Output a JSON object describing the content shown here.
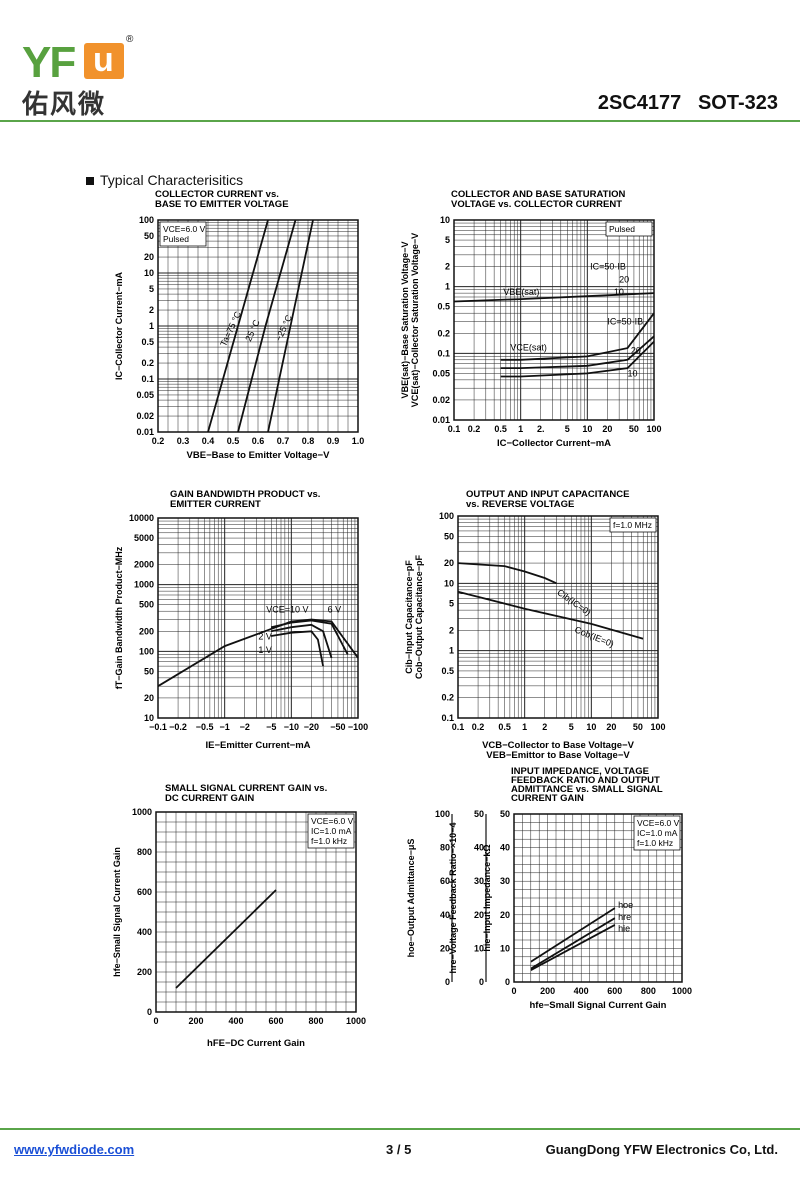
{
  "header": {
    "logo_latin": "YFW",
    "logo_cn": "佑风微",
    "registered": "®",
    "part_number": "2SC4177   SOT-323"
  },
  "section_title": "Typical Characterisitics",
  "footer": {
    "website": "www.yfwdiode.com",
    "page": "3 / 5",
    "company": "GuangDong YFW Electronics Co, Ltd."
  },
  "chart_data": [
    {
      "id": "c1",
      "type": "line",
      "title": [
        "COLLECTOR CURRENT vs.",
        "BASE TO EMITTER VOLTAGE"
      ],
      "xlabel": "VBE−Base to Emitter Voltage−V",
      "ylabel": "IC−Collector Current−mA",
      "x_scale": "linear",
      "y_scale": "log",
      "xlim": [
        0.2,
        1.0
      ],
      "ylim": [
        0.01,
        100
      ],
      "x_ticks": [
        "0.2",
        "0.3",
        "0.4",
        "0.5",
        "0.6",
        "0.7",
        "0.8",
        "0.9",
        "1.0"
      ],
      "y_ticks": [
        "100",
        "50",
        "20",
        "10",
        "5",
        "2",
        "1",
        "0.5",
        "0.2",
        "0.1",
        "0.05",
        "0.02",
        "0.01"
      ],
      "conditions": [
        "VCE=6.0 V",
        "Pulsed"
      ],
      "series": [
        {
          "name": "Ta=75 °C",
          "x": [
            0.4,
            0.52,
            0.64
          ],
          "y": [
            0.01,
            1,
            100
          ]
        },
        {
          "name": "25 °C",
          "x": [
            0.52,
            0.63,
            0.75
          ],
          "y": [
            0.01,
            1,
            100
          ]
        },
        {
          "name": "−25 °C",
          "x": [
            0.64,
            0.73,
            0.82
          ],
          "y": [
            0.01,
            1,
            100
          ]
        }
      ]
    },
    {
      "id": "c2",
      "type": "line",
      "title": [
        "COLLECTOR AND BASE SATURATION",
        "VOLTAGE vs. COLLECTOR CURRENT"
      ],
      "xlabel": "IC−Collector Current−mA",
      "ylabel": [
        "VBE(sat)−Base Saturation Voltage−V",
        "VCE(sat)−Collector Saturation Voltage−V"
      ],
      "x_scale": "log",
      "y_scale": "log",
      "xlim": [
        0.1,
        100
      ],
      "ylim": [
        0.01,
        10
      ],
      "x_ticks": [
        "0.1",
        "0.2",
        "0.5",
        "1",
        "2.",
        "5",
        "10",
        "20",
        "50",
        "100"
      ],
      "y_ticks": [
        "10",
        "5",
        "2",
        "1",
        "0.5",
        "0.2",
        "0.1",
        "0.05",
        "0.02",
        "0.01"
      ],
      "conditions": [
        "Pulsed"
      ],
      "annotations": [
        "IC=50·IB",
        "20",
        "10",
        "VBE(sat)",
        "VCE(sat)",
        "IC=50·IB",
        "20",
        "10"
      ],
      "series": [
        {
          "name": "VBE(sat)",
          "x": [
            0.1,
            1,
            10,
            100
          ],
          "y": [
            0.6,
            0.65,
            0.72,
            0.8
          ]
        },
        {
          "name": "VCE(sat) 50",
          "x": [
            0.5,
            1,
            10,
            40,
            100
          ],
          "y": [
            0.08,
            0.08,
            0.09,
            0.12,
            0.4
          ]
        },
        {
          "name": "VCE(sat) 20",
          "x": [
            0.5,
            1,
            10,
            40,
            100
          ],
          "y": [
            0.06,
            0.06,
            0.065,
            0.08,
            0.18
          ]
        },
        {
          "name": "VCE(sat) 10",
          "x": [
            0.5,
            1,
            10,
            40,
            100
          ],
          "y": [
            0.045,
            0.045,
            0.05,
            0.06,
            0.15
          ]
        }
      ]
    },
    {
      "id": "c3",
      "type": "line",
      "title": [
        "GAIN BANDWIDTH PRODUCT vs.",
        "EMITTER CURRENT"
      ],
      "xlabel": "IE−Emitter Current−mA",
      "ylabel": "fT−Gain Bandwidth Product−MHz",
      "x_scale": "log",
      "y_scale": "log",
      "xlim": [
        0.1,
        100
      ],
      "ylim": [
        10,
        10000
      ],
      "x_ticks": [
        "−0.1",
        "−0.2",
        "−0.5",
        "−1",
        "−2",
        "−5",
        "−10",
        "−20",
        "−50",
        "−100"
      ],
      "y_ticks": [
        "10000",
        "5000",
        "2000",
        "1000",
        "500",
        "200",
        "100",
        "50",
        "20",
        "10"
      ],
      "annotations": [
        "VCE=10 V",
        "6 V",
        "2 V",
        "1 V"
      ],
      "series": [
        {
          "name": "VCE=10 V",
          "x": [
            0.1,
            1,
            10,
            20,
            40,
            100
          ],
          "y": [
            30,
            120,
            280,
            300,
            280,
            80
          ]
        },
        {
          "name": "6 V",
          "x": [
            5,
            10,
            20,
            40,
            70
          ],
          "y": [
            230,
            270,
            290,
            260,
            90
          ]
        },
        {
          "name": "2 V",
          "x": [
            5,
            10,
            20,
            30,
            40
          ],
          "y": [
            200,
            230,
            250,
            200,
            80
          ]
        },
        {
          "name": "1 V",
          "x": [
            5,
            10,
            20,
            25,
            30
          ],
          "y": [
            170,
            190,
            200,
            150,
            60
          ]
        }
      ]
    },
    {
      "id": "c4",
      "type": "line",
      "title": [
        "OUTPUT AND INPUT CAPACITANCE",
        "vs. REVERSE VOLTAGE"
      ],
      "xlabel": [
        "VCB−Collector to Base Voltage−V",
        "VEB−Emittor to Base Voltage−V"
      ],
      "ylabel": [
        "Cib−Input Capacitance−pF",
        "Cob−Output Capacitance−pF"
      ],
      "x_scale": "log",
      "y_scale": "log",
      "xlim": [
        0.1,
        100
      ],
      "ylim": [
        0.1,
        100
      ],
      "x_ticks": [
        "0.1",
        "0.2",
        "0.5",
        "1",
        "2",
        "5",
        "10",
        "20",
        "50",
        "100"
      ],
      "y_ticks": [
        "100",
        "50",
        "20",
        "10",
        "5",
        "2",
        "1",
        "0.5",
        "0.2",
        "0.1"
      ],
      "conditions": [
        "f=1.0 MHz"
      ],
      "series": [
        {
          "name": "Cib(IC=0)",
          "x": [
            0.1,
            0.5,
            1,
            2,
            3
          ],
          "y": [
            20,
            18,
            15,
            12,
            10
          ]
        },
        {
          "name": "Cob(IE=0)",
          "x": [
            0.1,
            1,
            10,
            60
          ],
          "y": [
            7.5,
            4.2,
            2.5,
            1.5
          ]
        }
      ]
    },
    {
      "id": "c5",
      "type": "line",
      "title": [
        "SMALL SIGNAL CURRENT GAIN vs.",
        "DC CURRENT GAIN"
      ],
      "xlabel": "hFE−DC Current Gain",
      "ylabel": "hfe−Small Signal Current Gain",
      "x_scale": "linear",
      "y_scale": "linear",
      "xlim": [
        0,
        1000
      ],
      "ylim": [
        0,
        1000
      ],
      "x_ticks": [
        "0",
        "200",
        "400",
        "600",
        "800",
        "1000"
      ],
      "y_ticks": [
        "0",
        "200",
        "400",
        "600",
        "800",
        "1000"
      ],
      "conditions": [
        "VCE=6.0 V",
        "IC=1.0 mA",
        "f=1.0 kHz"
      ],
      "series": [
        {
          "name": "hfe",
          "x": [
            100,
            600
          ],
          "y": [
            120,
            610
          ]
        }
      ]
    },
    {
      "id": "c6",
      "type": "line",
      "title": [
        "INPUT IMPEDANCE, VOLTAGE",
        "FEEDBACK RATIO AND OUTPUT",
        "ADMITTANCE vs. SMALL SIGNAL",
        "CURRENT GAIN"
      ],
      "xlabel": "hfe−Small Signal Current Gain",
      "ylabel": [
        "hoe−Output Admittance−μS",
        "hre−Voltage Feedback Ratio−×10−4",
        "hie−Input Impedance−kΩ"
      ],
      "x_scale": "linear",
      "y_scale": "linear",
      "xlim": [
        0,
        1000
      ],
      "ylim": [
        0,
        50
      ],
      "x_ticks": [
        "0",
        "200",
        "400",
        "600",
        "800",
        "1000"
      ],
      "y_ticks": [
        "0",
        "10",
        "20",
        "30",
        "40",
        "50"
      ],
      "y_ticks_outer": [
        "0",
        "20",
        "40",
        "60",
        "80",
        "100"
      ],
      "conditions": [
        "VCE=6.0 V",
        "IC=1.0 mA",
        "f=1.0 kHz"
      ],
      "series": [
        {
          "name": "hoe",
          "x": [
            100,
            600
          ],
          "y": [
            6,
            22
          ]
        },
        {
          "name": "hre",
          "x": [
            100,
            600
          ],
          "y": [
            4,
            19
          ]
        },
        {
          "name": "hie",
          "x": [
            100,
            600
          ],
          "y": [
            3.5,
            17
          ]
        }
      ]
    }
  ]
}
